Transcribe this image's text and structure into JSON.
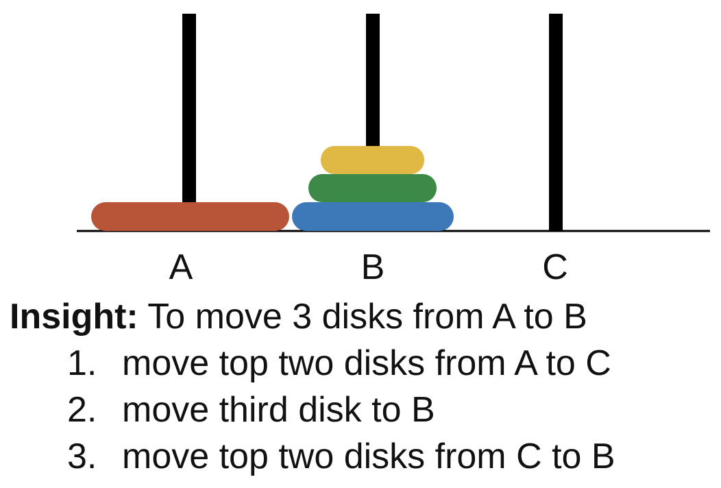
{
  "pegs": [
    {
      "label": "A"
    },
    {
      "label": "B"
    },
    {
      "label": "C"
    }
  ],
  "disks": [
    {
      "name": "red-disk",
      "peg": "A",
      "size_rank": 4,
      "color": "#b85438"
    },
    {
      "name": "blue-disk",
      "peg": "B",
      "size_rank": 3,
      "color": "#3d78b8"
    },
    {
      "name": "green-disk",
      "peg": "B",
      "size_rank": 2,
      "color": "#3d8a48"
    },
    {
      "name": "yellow-disk",
      "peg": "B",
      "size_rank": 1,
      "color": "#e0b844"
    }
  ],
  "colors": {
    "peg": "#000000",
    "base": "#000000"
  },
  "insight": {
    "heading": "Insight:",
    "text": " To move 3 disks from A to B",
    "steps": [
      {
        "num": "1.",
        "text": "move top two disks from A to C"
      },
      {
        "num": "2.",
        "text": "move third disk to B"
      },
      {
        "num": "3.",
        "text": "move top two disks from C to B"
      }
    ]
  }
}
